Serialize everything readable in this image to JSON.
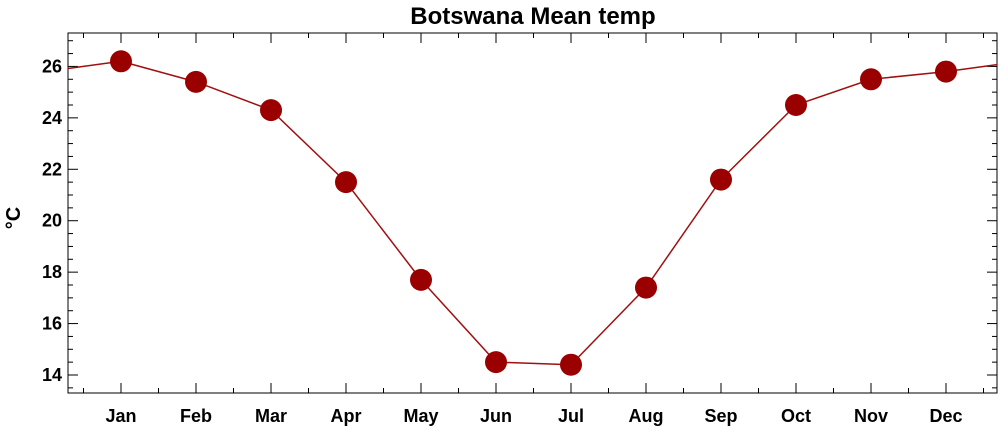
{
  "chart_data": {
    "type": "line",
    "title": "Botswana Mean temp",
    "xlabel": "",
    "ylabel": "°C",
    "categories": [
      "Jan",
      "Feb",
      "Mar",
      "Apr",
      "May",
      "Jun",
      "Jul",
      "Aug",
      "Sep",
      "Oct",
      "Nov",
      "Dec"
    ],
    "series": [
      {
        "values": [
          26.2,
          25.4,
          24.3,
          21.5,
          17.7,
          14.5,
          14.4,
          17.4,
          21.6,
          24.5,
          25.5,
          25.8
        ]
      }
    ],
    "ylim": [
      13.3,
      27.3
    ],
    "yticks": [
      14,
      16,
      18,
      20,
      22,
      24,
      26
    ],
    "ytick_labels": [
      "14",
      "16",
      "18",
      "20",
      "22",
      "24",
      "26"
    ],
    "grid": false,
    "colors": {
      "line": "#a01010",
      "marker": "#9a0000",
      "axis": "#000000"
    }
  }
}
